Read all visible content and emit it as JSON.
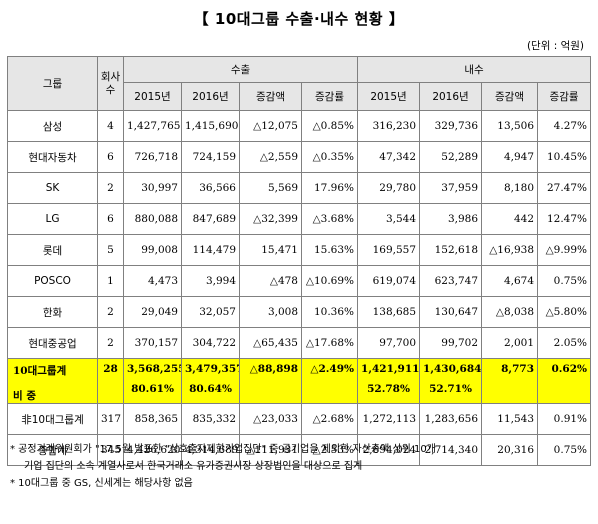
{
  "title": "【 10대그룹 수출·내수 현황 】",
  "unit": "(단위 : 억원)",
  "headers": {
    "group": "그룹",
    "count": "회사수",
    "export": "수출",
    "domestic": "내수",
    "y2015": "2015년",
    "y2016": "2016년",
    "change_amt": "증감액",
    "change_rate": "증감률"
  },
  "rows": [
    {
      "name": "삼성",
      "count": "4",
      "ex15": "1,427,765",
      "ex16": "1,415,690",
      "exd": "△12,075",
      "exr": "△0.85%",
      "do15": "316,230",
      "do16": "329,736",
      "dod": "13,506",
      "dor": "4.27%"
    },
    {
      "name": "현대자동차",
      "count": "6",
      "ex15": "726,718",
      "ex16": "724,159",
      "exd": "△2,559",
      "exr": "△0.35%",
      "do15": "47,342",
      "do16": "52,289",
      "dod": "4,947",
      "dor": "10.45%"
    },
    {
      "name": "SK",
      "count": "2",
      "ex15": "30,997",
      "ex16": "36,566",
      "exd": "5,569",
      "exr": "17.96%",
      "do15": "29,780",
      "do16": "37,959",
      "dod": "8,180",
      "dor": "27.47%"
    },
    {
      "name": "LG",
      "count": "6",
      "ex15": "880,088",
      "ex16": "847,689",
      "exd": "△32,399",
      "exr": "△3.68%",
      "do15": "3,544",
      "do16": "3,986",
      "dod": "442",
      "dor": "12.47%"
    },
    {
      "name": "롯데",
      "count": "5",
      "ex15": "99,008",
      "ex16": "114,479",
      "exd": "15,471",
      "exr": "15.63%",
      "do15": "169,557",
      "do16": "152,618",
      "dod": "△16,938",
      "dor": "△9.99%"
    },
    {
      "name": "POSCO",
      "count": "1",
      "ex15": "4,473",
      "ex16": "3,994",
      "exd": "△478",
      "exr": "△10.69%",
      "do15": "619,074",
      "do16": "623,747",
      "dod": "4,674",
      "dor": "0.75%"
    },
    {
      "name": "한화",
      "count": "2",
      "ex15": "29,049",
      "ex16": "32,057",
      "exd": "3,008",
      "exr": "10.36%",
      "do15": "138,685",
      "do16": "130,647",
      "dod": "△8,038",
      "dor": "△5.80%"
    },
    {
      "name": "현대중공업",
      "count": "2",
      "ex15": "370,157",
      "ex16": "304,722",
      "exd": "△65,435",
      "exr": "△17.68%",
      "do15": "97,700",
      "do16": "99,702",
      "dod": "2,001",
      "dor": "2.05%"
    }
  ],
  "top10": {
    "name_line1": "10대그룹계",
    "name_line2": "비 중",
    "count": "28",
    "ex15": "3,568,255",
    "ex15_share": "80.61%",
    "ex16": "3,479,357",
    "ex16_share": "80.64%",
    "exd": "△88,898",
    "exr": "△2.49%",
    "do15": "1,421,911",
    "do15_share": "52.78%",
    "do16": "1,430,684",
    "do16_share": "52.71%",
    "dod": "8,773",
    "dor": "0.62%"
  },
  "non_top10": {
    "name": "非10대그룹계",
    "count": "317",
    "ex15": "858,365",
    "ex16": "835,332",
    "exd": "△23,033",
    "exr": "△2.68%",
    "do15": "1,272,113",
    "do16": "1,283,656",
    "dod": "11,543",
    "dor": "0.91%"
  },
  "total": {
    "name": "총합계",
    "count": "345",
    "ex15": "4,426,620",
    "ex16": "4,314,689",
    "exd": "△111,931",
    "exr": "△2.53%",
    "do15": "2,694,024",
    "do16": "2,714,340",
    "dod": "20,316",
    "dor": "0.75%"
  },
  "notes": {
    "note1_line1": "* 공정거래위원회가 \"17.5월 발표한 \"상호출자제한기업집단\" 중 공기업을 제외한 자산총액 상위 10개",
    "note1_line2": "기업 집단의 소속 계열사로서 한국거래소 유가증권시장 상장법인을 대상으로 집계",
    "note2": "* 10대그룹 중 GS, 신세계는 해당사항 없음"
  },
  "colors": {
    "highlight": "#ffff00",
    "header_bg": "#e6e6e6",
    "border": "#808080"
  }
}
